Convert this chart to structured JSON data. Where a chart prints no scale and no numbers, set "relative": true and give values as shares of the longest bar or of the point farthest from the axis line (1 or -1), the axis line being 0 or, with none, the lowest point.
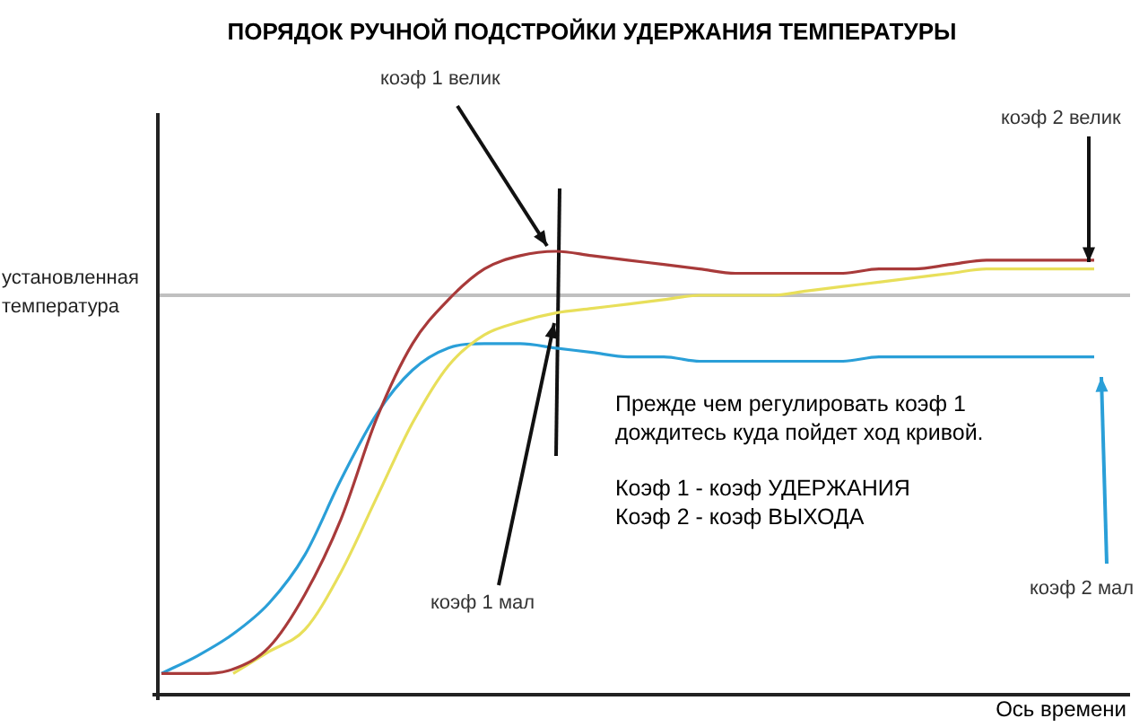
{
  "chart_data": {
    "type": "line",
    "title": "ПОРЯДОК РУЧНОЙ ПОДСТРОЙКИ УДЕРЖАНИЯ ТЕМПЕРАТУРЫ",
    "xlabel": "Ось времени",
    "relative": true,
    "marker": "none",
    "line_style": "solid",
    "categories": [
      null,
      null,
      null,
      null,
      null,
      null,
      null,
      null,
      null,
      null,
      null,
      null,
      null,
      null,
      null,
      null,
      null,
      null,
      null,
      null,
      null,
      null,
      null,
      null,
      null,
      null,
      null
    ],
    "series": [
      {
        "color": "#a83a3a",
        "values": [
          0.04,
          0.04,
          0.05,
          0.1,
          0.22,
          0.39,
          0.62,
          0.79,
          0.89,
          0.96,
          0.99,
          1,
          0.99,
          0.98,
          0.97,
          0.96,
          0.95,
          0.95,
          0.95,
          0.95,
          0.96,
          0.96,
          0.97,
          0.98,
          0.98,
          0.98,
          0.98
        ]
      },
      {
        "color": "#e8df5a",
        "values": [
          null,
          null,
          0.04,
          0.09,
          0.14,
          0.27,
          0.44,
          0.61,
          0.74,
          0.81,
          0.84,
          0.86,
          0.87,
          0.88,
          0.89,
          0.9,
          0.9,
          0.9,
          0.91,
          0.92,
          0.93,
          0.94,
          0.95,
          0.96,
          0.96,
          0.96,
          0.96
        ]
      },
      {
        "color": "#2a9fd8",
        "values": [
          0.04,
          0.08,
          0.13,
          0.2,
          0.31,
          0.48,
          0.63,
          0.73,
          0.78,
          0.79,
          0.79,
          0.78,
          0.77,
          0.76,
          0.76,
          0.75,
          0.75,
          0.75,
          0.75,
          0.75,
          0.76,
          0.76,
          0.76,
          0.76,
          0.76,
          0.76,
          0.76
        ]
      }
    ],
    "ref_lines": [
      {
        "axis": "y",
        "value": 0.9,
        "label": "установленная температура",
        "color": "#c0c0c0"
      }
    ],
    "annotations": [
      "коэф 1 велик",
      "коэф 2 велик",
      "коэф 1 мал",
      "коэф 2 мал",
      "Прежде чем регулировать коэф 1\nдождитесь куда пойдет ход кривой.\n\nКоэф 1 - коэф УДЕРЖАНИЯ\nКоэф 2 -  коэф ВЫХОДА"
    ]
  }
}
